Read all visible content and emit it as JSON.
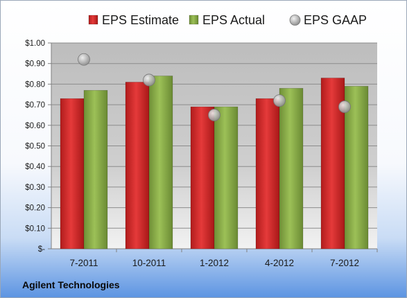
{
  "chart_data": {
    "type": "bar",
    "categories": [
      "7-2011",
      "10-2011",
      "1-2012",
      "4-2012",
      "7-2012"
    ],
    "series": [
      {
        "name": "EPS Estimate",
        "kind": "bar",
        "color": "#d42a2a",
        "values": [
          0.73,
          0.81,
          0.69,
          0.73,
          0.83
        ]
      },
      {
        "name": "EPS Actual",
        "kind": "bar",
        "color": "#8bb04a",
        "values": [
          0.77,
          0.84,
          0.69,
          0.78,
          0.79
        ]
      },
      {
        "name": "EPS GAAP",
        "kind": "scatter",
        "color": "#a9a9a9",
        "values": [
          0.92,
          0.82,
          0.65,
          0.72,
          0.69
        ]
      }
    ],
    "ylim": [
      0,
      1.0
    ],
    "yticks": [
      0,
      0.1,
      0.2,
      0.3,
      0.4,
      0.5,
      0.6,
      0.7,
      0.8,
      0.9,
      1.0
    ],
    "ytick_labels": [
      "$-",
      "$0.10",
      "$0.20",
      "$0.30",
      "$0.40",
      "$0.50",
      "$0.60",
      "$0.70",
      "$0.80",
      "$0.90",
      "$1.00"
    ],
    "grid": true,
    "legend_position": "top"
  },
  "footer": {
    "company": "Agilent Technologies"
  }
}
